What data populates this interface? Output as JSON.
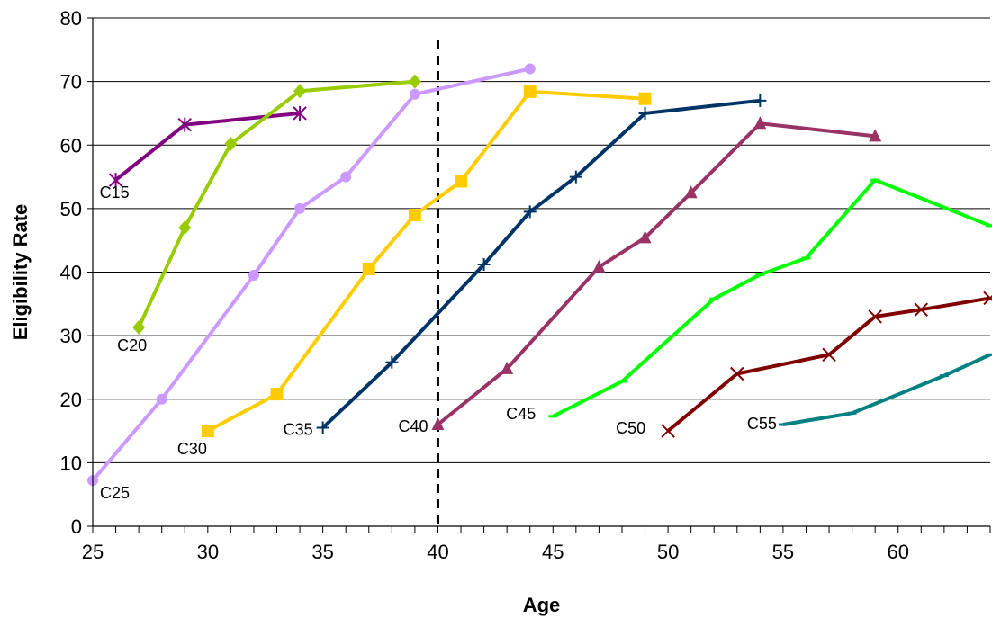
{
  "chart_data": {
    "type": "line",
    "title": "",
    "xlabel": "Age",
    "ylabel": "Eligibility Rate",
    "xlim": [
      25,
      64
    ],
    "ylim": [
      0,
      80
    ],
    "x_ticks": [
      25,
      30,
      35,
      40,
      45,
      50,
      55,
      60
    ],
    "y_ticks": [
      0,
      10,
      20,
      30,
      40,
      50,
      60,
      70,
      80
    ],
    "grid": "horizontal",
    "legend": "none",
    "reference_line": {
      "x": 40,
      "style": "dashed"
    },
    "series": [
      {
        "name": "C15",
        "color": "#800080",
        "marker": "asterisk",
        "x": [
          26,
          29,
          34
        ],
        "y": [
          54.5,
          63.2,
          65
        ]
      },
      {
        "name": "C20",
        "color": "#99CC00",
        "marker": "diamond",
        "x": [
          27,
          29,
          31,
          34,
          39
        ],
        "y": [
          31.3,
          47,
          60.2,
          68.5,
          70
        ]
      },
      {
        "name": "C25",
        "color": "#CC99FF",
        "marker": "circle",
        "x": [
          25,
          28,
          32,
          34,
          36,
          39,
          44
        ],
        "y": [
          7.2,
          20,
          39.5,
          50,
          55,
          68,
          72
        ]
      },
      {
        "name": "C30",
        "color": "#FFCC00",
        "marker": "square",
        "x": [
          30,
          33,
          37,
          39,
          41,
          44,
          49
        ],
        "y": [
          15,
          20.8,
          40.5,
          49,
          54.3,
          68.4,
          67.3
        ]
      },
      {
        "name": "C35",
        "color": "#003366",
        "marker": "plus",
        "x": [
          35,
          38,
          42,
          44,
          46,
          49,
          54
        ],
        "y": [
          15.5,
          25.8,
          41.2,
          49.5,
          55,
          65,
          67
        ]
      },
      {
        "name": "C40",
        "color": "#993366",
        "marker": "triangle",
        "x": [
          40,
          43,
          47,
          49,
          51,
          54,
          59
        ],
        "y": [
          16,
          24.8,
          40.8,
          45.4,
          52.5,
          63.4,
          61.4
        ]
      },
      {
        "name": "C45",
        "color": "#00FF00",
        "marker": "dash",
        "x": [
          45,
          48,
          52,
          54,
          56,
          59,
          64
        ],
        "y": [
          17.3,
          22.8,
          35.8,
          39.6,
          42.2,
          54.5,
          47.3
        ]
      },
      {
        "name": "C50",
        "color": "#800000",
        "marker": "x",
        "x": [
          50,
          53,
          57,
          59,
          61,
          64
        ],
        "y": [
          15,
          24,
          27,
          33,
          34.1,
          35.9
        ]
      },
      {
        "name": "C55",
        "color": "#008080",
        "marker": "dash",
        "x": [
          55,
          58,
          62,
          64
        ],
        "y": [
          16,
          17.8,
          23.7,
          27
        ]
      }
    ]
  }
}
